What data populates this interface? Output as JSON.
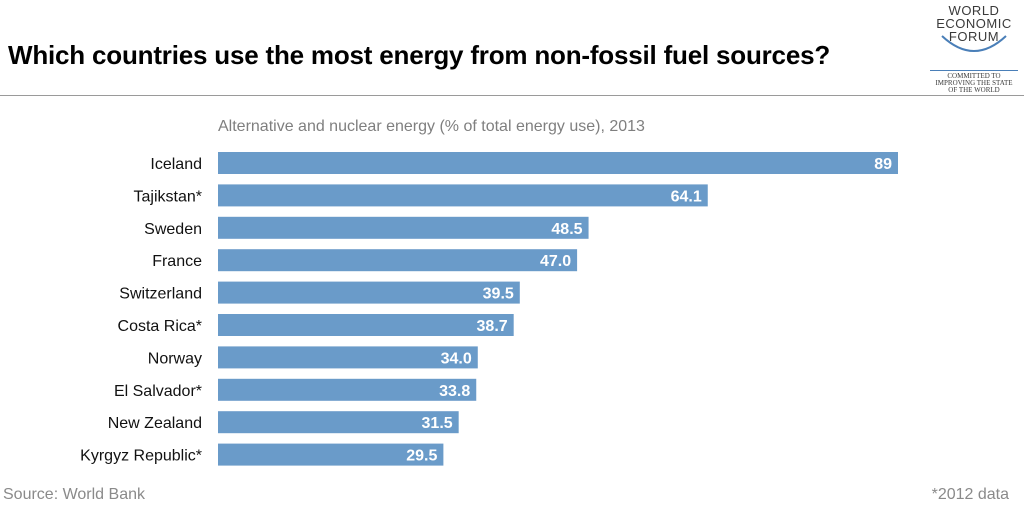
{
  "title": "Which countries use the most energy from non-fossil fuel sources?",
  "logo": {
    "lines": [
      "WORLD",
      "ECONOMIC",
      "FORUM"
    ],
    "tagline": [
      "COMMITTED TO",
      "IMPROVING THE STATE",
      "OF THE WORLD"
    ],
    "color": "#4a7fb8"
  },
  "source": "Source: World Bank",
  "footnote": "*2012 data",
  "colors": {
    "bar": "#6a9bc9",
    "bar_label": "#ffffff",
    "category_label": "#111111"
  },
  "chart_data": {
    "type": "bar",
    "orientation": "horizontal",
    "title": "Alternative and nuclear energy (% of total energy use), 2013",
    "xlabel": "",
    "ylabel": "",
    "xlim": [
      0,
      89
    ],
    "grid": false,
    "categories": [
      "Iceland",
      "Tajikstan*",
      "Sweden",
      "France",
      "Switzerland",
      "Costa Rica*",
      "Norway",
      "El Salvador*",
      "New Zealand",
      "Kyrgyz Republic*"
    ],
    "values": [
      89,
      64.1,
      48.5,
      47.0,
      39.5,
      38.7,
      34.0,
      33.8,
      31.5,
      29.5
    ],
    "value_labels": [
      "89",
      "64.1",
      "48.5",
      "47.0",
      "39.5",
      "38.7",
      "34.0",
      "33.8",
      "31.5",
      "29.5"
    ]
  }
}
